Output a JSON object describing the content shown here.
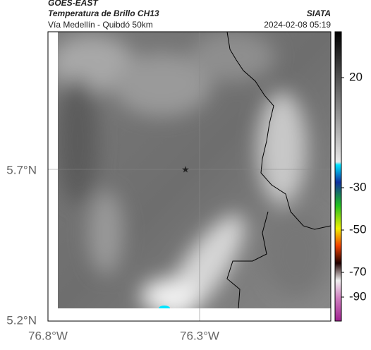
{
  "header": {
    "source": "GOES-EAST",
    "title": "Temperatura de Brillo CH13",
    "subtitle": "Vía Medellín - Quibdó 50km",
    "agency": "SIATA",
    "datetime": "2024-02-08 05:19"
  },
  "axes": {
    "lat_labels": [
      "5.7°N",
      "5.2°N"
    ],
    "lon_labels": [
      "76.8°W",
      "76.3°W"
    ]
  },
  "colorbar": {
    "labels": [
      "20",
      "-30",
      "-50",
      "-70",
      "-90"
    ]
  }
}
